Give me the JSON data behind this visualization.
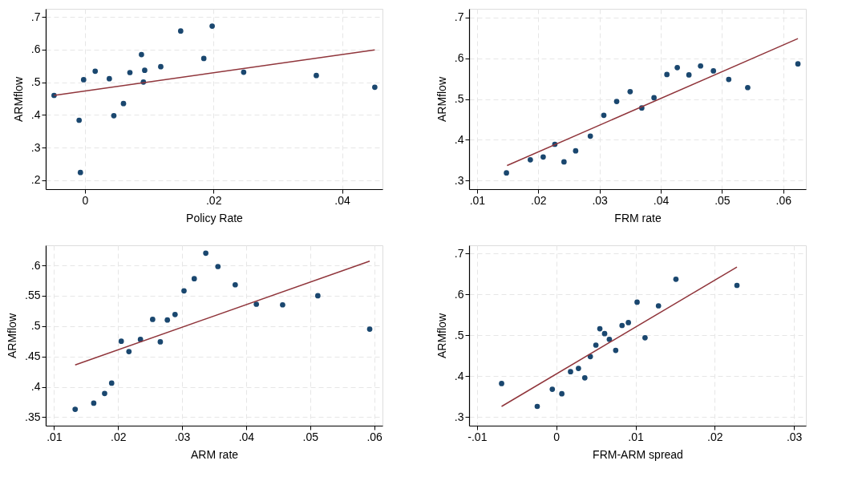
{
  "chart_data": [
    {
      "type": "scatter",
      "xlabel": "Policy Rate",
      "ylabel": "ARMflow",
      "grid": true,
      "xlim": [
        -0.0061,
        0.0463
      ],
      "ylim": [
        0.173,
        0.725
      ],
      "xticks": [
        0,
        {
          "value": 0.02,
          "label": ".02"
        },
        {
          "value": 0.04,
          "label": ".04"
        }
      ],
      "yticks": [
        {
          "value": 0.2,
          "label": ".2"
        },
        {
          "value": 0.3,
          "label": ".3"
        },
        {
          "value": 0.4,
          "label": ".4"
        },
        {
          "value": 0.5,
          "label": ".5"
        },
        {
          "value": 0.6,
          "label": ".6"
        },
        {
          "value": 0.7,
          "label": ".7"
        }
      ],
      "series": [
        {
          "marker": "circle",
          "color": "#1a476f",
          "x": [
            -0.0048,
            -0.0002,
            -0.0009,
            -0.0007,
            0.0016,
            0.0038,
            0.0045,
            0.006,
            0.007,
            0.0088,
            0.0091,
            0.0093,
            0.0118,
            0.0149,
            0.0185,
            0.0198,
            0.0247,
            0.036,
            0.0451
          ],
          "values": [
            0.46,
            0.508,
            0.384,
            0.224,
            0.534,
            0.511,
            0.398,
            0.435,
            0.53,
            0.585,
            0.501,
            0.537,
            0.548,
            0.657,
            0.573,
            0.672,
            0.531,
            0.521,
            0.485
          ]
        },
        {
          "type": "line",
          "marker": "none",
          "line_style": "solid",
          "color": "#90353b",
          "x": [
            -0.0048,
            0.0451
          ],
          "values": [
            0.46,
            0.599
          ]
        }
      ]
    },
    {
      "type": "scatter",
      "xlabel": "FRM rate",
      "ylabel": "ARMflow",
      "grid": true,
      "xlim": [
        0.0087,
        0.0637
      ],
      "ylim": [
        0.279,
        0.721
      ],
      "xticks": [
        {
          "value": 0.01,
          "label": ".01"
        },
        {
          "value": 0.02,
          "label": ".02"
        },
        {
          "value": 0.03,
          "label": ".03"
        },
        {
          "value": 0.04,
          "label": ".04"
        },
        {
          "value": 0.05,
          "label": ".05"
        },
        {
          "value": 0.06,
          "label": ".06"
        }
      ],
      "yticks": [
        {
          "value": 0.3,
          "label": ".3"
        },
        {
          "value": 0.4,
          "label": ".4"
        },
        {
          "value": 0.5,
          "label": ".5"
        },
        {
          "value": 0.6,
          "label": ".6"
        },
        {
          "value": 0.7,
          "label": ".7"
        }
      ],
      "series": [
        {
          "marker": "circle",
          "color": "#1a476f",
          "x": [
            0.0148,
            0.0187,
            0.0208,
            0.0227,
            0.0242,
            0.0261,
            0.0285,
            0.0307,
            0.0328,
            0.035,
            0.0369,
            0.0389,
            0.041,
            0.0427,
            0.0446,
            0.0465,
            0.0486,
            0.0511,
            0.0542,
            0.0624
          ],
          "values": [
            0.319,
            0.351,
            0.358,
            0.389,
            0.346,
            0.373,
            0.409,
            0.46,
            0.494,
            0.518,
            0.478,
            0.503,
            0.56,
            0.577,
            0.559,
            0.581,
            0.569,
            0.548,
            0.528,
            0.586
          ]
        },
        {
          "type": "line",
          "marker": "none",
          "line_style": "solid",
          "color": "#90353b",
          "x": [
            0.0149,
            0.0624
          ],
          "values": [
            0.337,
            0.648
          ]
        }
      ]
    },
    {
      "type": "scatter",
      "xlabel": "ARM rate",
      "ylabel": "ARMflow",
      "grid": true,
      "xlim": [
        0.0087,
        0.0613
      ],
      "ylim": [
        0.336,
        0.633
      ],
      "xticks": [
        {
          "value": 0.01,
          "label": ".01"
        },
        {
          "value": 0.02,
          "label": ".02"
        },
        {
          "value": 0.03,
          "label": ".03"
        },
        {
          "value": 0.04,
          "label": ".04"
        },
        {
          "value": 0.05,
          "label": ".05"
        },
        {
          "value": 0.06,
          "label": ".06"
        }
      ],
      "yticks": [
        {
          "value": 0.35,
          "label": ".35"
        },
        {
          "value": 0.4,
          "label": ".4"
        },
        {
          "value": 0.45,
          "label": ".45"
        },
        {
          "value": 0.5,
          "label": ".5"
        },
        {
          "value": 0.55,
          "label": ".55"
        },
        {
          "value": 0.6,
          "label": ".6"
        }
      ],
      "series": [
        {
          "marker": "circle",
          "color": "#1a476f",
          "x": [
            0.0133,
            0.0162,
            0.0179,
            0.019,
            0.0205,
            0.0217,
            0.0235,
            0.0254,
            0.0266,
            0.0277,
            0.0289,
            0.0303,
            0.0319,
            0.0337,
            0.0356,
            0.0383,
            0.0416,
            0.0457,
            0.0512,
            0.0593
          ],
          "values": [
            0.363,
            0.373,
            0.389,
            0.406,
            0.475,
            0.458,
            0.478,
            0.511,
            0.474,
            0.51,
            0.519,
            0.558,
            0.578,
            0.62,
            0.598,
            0.568,
            0.536,
            0.535,
            0.55,
            0.495
          ]
        },
        {
          "type": "line",
          "marker": "none",
          "line_style": "solid",
          "color": "#90353b",
          "x": [
            0.0133,
            0.0593
          ],
          "values": [
            0.436,
            0.607
          ]
        }
      ]
    },
    {
      "type": "scatter",
      "xlabel": "FRM-ARM spread",
      "ylabel": "ARMflow",
      "grid": true,
      "xlim": [
        -0.011,
        0.0315
      ],
      "ylim": [
        0.279,
        0.72
      ],
      "xticks": [
        {
          "value": -0.01,
          "label": "-.01"
        },
        0,
        {
          "value": 0.01,
          "label": ".01"
        },
        {
          "value": 0.02,
          "label": ".02"
        },
        {
          "value": 0.03,
          "label": ".03"
        }
      ],
      "yticks": [
        {
          "value": 0.3,
          "label": ".3"
        },
        {
          "value": 0.4,
          "label": ".4"
        },
        {
          "value": 0.5,
          "label": ".5"
        },
        {
          "value": 0.6,
          "label": ".6"
        },
        {
          "value": 0.7,
          "label": ".7"
        }
      ],
      "series": [
        {
          "marker": "circle",
          "color": "#1a476f",
          "x": [
            -0.0069,
            -0.0024,
            -0.0005,
            0.0007,
            0.0018,
            0.0028,
            0.0036,
            0.0043,
            0.005,
            0.0055,
            0.0061,
            0.0067,
            0.0075,
            0.0083,
            0.0091,
            0.0102,
            0.0112,
            0.0129,
            0.0151,
            0.0228
          ],
          "values": [
            0.382,
            0.326,
            0.368,
            0.357,
            0.411,
            0.419,
            0.396,
            0.448,
            0.476,
            0.516,
            0.504,
            0.49,
            0.463,
            0.524,
            0.531,
            0.581,
            0.494,
            0.572,
            0.637,
            0.622
          ]
        },
        {
          "type": "line",
          "marker": "none",
          "line_style": "solid",
          "color": "#90353b",
          "x": [
            -0.0069,
            0.0228
          ],
          "values": [
            0.326,
            0.667
          ]
        }
      ]
    }
  ]
}
